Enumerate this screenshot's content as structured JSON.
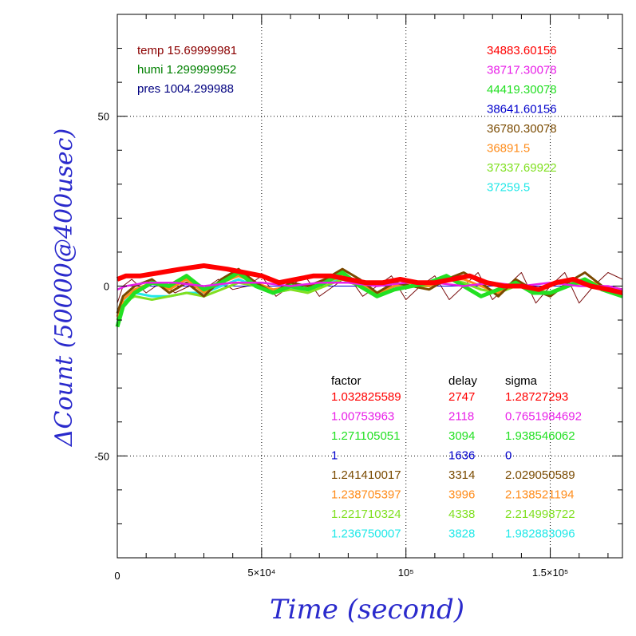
{
  "chart_data": {
    "type": "line",
    "title": "",
    "xlabel": "Time (second)",
    "ylabel": "ΔCount (50000@400usec)",
    "xlim": [
      0,
      175000
    ],
    "ylim": [
      -80,
      80
    ],
    "grid": "dotted at x=50000,100000,150000 and y=-50,0,50",
    "x_ticks": [
      {
        "value": 0,
        "label": "0"
      },
      {
        "value": 50000,
        "label": "5×10⁴"
      },
      {
        "value": 100000,
        "label": "10⁵"
      },
      {
        "value": 150000,
        "label": "1.5×10⁵"
      }
    ],
    "y_ticks": [
      {
        "value": -50,
        "label": "-50"
      },
      {
        "value": 0,
        "label": "0"
      },
      {
        "value": 50,
        "label": "50"
      }
    ],
    "env": [
      {
        "label": "temp",
        "value": "15.69999981",
        "color": "#8b0000"
      },
      {
        "label": "humi",
        "value": "1.299999952",
        "color": "#008000"
      },
      {
        "label": "pres",
        "value": "1004.299988",
        "color": "#000080"
      }
    ],
    "table_header": {
      "factor": "factor",
      "delay": "delay",
      "sigma": "sigma"
    },
    "series": [
      {
        "mean": "34883.60156",
        "factor": "1.032825589",
        "delay": "2747",
        "sigma": "1.28727293",
        "color": "#ff0000",
        "x": [
          0,
          3000,
          8000,
          15000,
          22000,
          30000,
          38000,
          44000,
          50000,
          56000,
          62000,
          68000,
          74000,
          80000,
          86000,
          92000,
          98000,
          104000,
          110000,
          116000,
          122000,
          128000,
          134000,
          140000,
          146000,
          152000,
          158000,
          164000,
          170000,
          175000
        ],
        "y": [
          2,
          3,
          3,
          4,
          5,
          6,
          5,
          4,
          3,
          1,
          2,
          3,
          3,
          2,
          1,
          1,
          2,
          1,
          1,
          2,
          3,
          1,
          0,
          0,
          -1,
          1,
          2,
          0,
          -1,
          -2
        ]
      },
      {
        "mean": "38717.30078",
        "factor": "1.00753963",
        "delay": "2118",
        "sigma": "0.7651984692",
        "color": "#e81ee8",
        "x": [
          0,
          3000,
          10000,
          20000,
          30000,
          40000,
          50000,
          60000,
          70000,
          80000,
          90000,
          100000,
          110000,
          120000,
          130000,
          140000,
          150000,
          160000,
          170000,
          175000
        ],
        "y": [
          -1,
          0,
          1,
          1,
          0,
          1,
          1,
          0,
          1,
          1,
          0,
          1,
          1,
          0,
          1,
          0,
          1,
          0,
          0,
          -1
        ]
      },
      {
        "mean": "44419.30078",
        "factor": "1.271105051",
        "delay": "3094",
        "sigma": "1.938546062",
        "color": "#22e022",
        "x": [
          0,
          2000,
          6000,
          12000,
          18000,
          24000,
          30000,
          36000,
          42000,
          48000,
          54000,
          60000,
          66000,
          72000,
          78000,
          84000,
          90000,
          96000,
          102000,
          108000,
          114000,
          120000,
          126000,
          132000,
          138000,
          144000,
          150000,
          156000,
          162000,
          168000,
          175000
        ],
        "y": [
          -12,
          -6,
          -2,
          1,
          0,
          3,
          -1,
          1,
          4,
          0,
          -2,
          0,
          -1,
          1,
          4,
          0,
          -3,
          -1,
          0,
          1,
          3,
          0,
          -3,
          -1,
          1,
          -2,
          -2,
          0,
          2,
          -1,
          -3
        ]
      },
      {
        "mean": "38641.60156",
        "factor": "1",
        "delay": "1636",
        "sigma": "0",
        "color": "#0000cc",
        "x": [
          0,
          5000,
          20000,
          40000,
          60000,
          80000,
          100000,
          120000,
          140000,
          160000,
          175000
        ],
        "y": [
          0,
          0,
          0,
          0,
          0,
          0,
          0,
          0,
          0,
          0,
          0
        ]
      },
      {
        "mean": "36780.30078",
        "factor": "1.241410017",
        "delay": "3314",
        "sigma": "2.029050589",
        "color": "#7a4a00",
        "x": [
          0,
          2000,
          6000,
          12000,
          18000,
          24000,
          30000,
          36000,
          42000,
          48000,
          54000,
          60000,
          66000,
          72000,
          78000,
          84000,
          90000,
          96000,
          102000,
          108000,
          114000,
          120000,
          126000,
          132000,
          138000,
          144000,
          150000,
          156000,
          162000,
          168000,
          175000
        ],
        "y": [
          -8,
          -3,
          0,
          2,
          -2,
          1,
          -3,
          2,
          5,
          1,
          -2,
          1,
          0,
          2,
          5,
          2,
          -2,
          1,
          0,
          -1,
          2,
          4,
          1,
          -3,
          2,
          -1,
          -3,
          1,
          4,
          0,
          -1
        ]
      },
      {
        "mean": "36891.5",
        "factor": "1.238705397",
        "delay": "3996",
        "sigma": "2.138521194",
        "color": "#ff8c1a",
        "x": [
          0,
          2000,
          6000,
          12000,
          18000,
          24000,
          30000,
          36000,
          42000,
          48000,
          54000,
          60000,
          66000,
          72000,
          78000,
          84000,
          90000,
          96000,
          102000,
          108000,
          114000,
          120000,
          126000,
          132000,
          138000,
          144000,
          150000,
          156000,
          162000,
          168000,
          175000
        ],
        "y": [
          -9,
          -4,
          -1,
          1,
          -1,
          2,
          -2,
          1,
          3,
          1,
          -1,
          0,
          -1,
          1,
          3,
          1,
          -2,
          0,
          1,
          0,
          2,
          2,
          0,
          -2,
          1,
          -1,
          -2,
          0,
          2,
          0,
          -2
        ]
      },
      {
        "mean": "37337.69922",
        "factor": "1.221710324",
        "delay": "4338",
        "sigma": "2.214998722",
        "color": "#80e020",
        "x": [
          0,
          2000,
          6000,
          12000,
          18000,
          24000,
          30000,
          36000,
          42000,
          48000,
          54000,
          60000,
          66000,
          72000,
          78000,
          84000,
          90000,
          96000,
          102000,
          108000,
          114000,
          120000,
          126000,
          132000,
          138000,
          144000,
          150000,
          156000,
          162000,
          168000,
          175000
        ],
        "y": [
          -10,
          -5,
          -3,
          -4,
          -3,
          -2,
          -3,
          -1,
          1,
          0,
          -2,
          -1,
          -2,
          0,
          2,
          0,
          -2,
          -1,
          0,
          0,
          2,
          1,
          -1,
          -2,
          0,
          -1,
          -2,
          0,
          1,
          -1,
          -2
        ]
      },
      {
        "mean": "37259.5",
        "factor": "1.236750007",
        "delay": "3828",
        "sigma": "1.982883096",
        "color": "#22e8e8",
        "x": [
          0,
          2000,
          6000,
          12000,
          18000,
          24000,
          30000,
          36000,
          42000,
          48000,
          54000,
          60000,
          66000,
          72000,
          78000,
          84000,
          90000,
          96000,
          102000,
          108000,
          114000,
          120000,
          126000,
          132000,
          138000,
          144000,
          150000,
          156000,
          162000,
          168000,
          175000
        ],
        "y": [
          -11,
          -5,
          -2,
          -3,
          -3,
          -2,
          -2,
          0,
          2,
          0,
          -2,
          -1,
          -1,
          1,
          2,
          0,
          -2,
          0,
          0,
          0,
          2,
          1,
          -1,
          -2,
          0,
          -1,
          -2,
          0,
          1,
          -1,
          -2
        ]
      },
      {
        "mean": "",
        "color": "#7a1010",
        "x": [
          0,
          2000,
          5000,
          10000,
          15000,
          20000,
          25000,
          30000,
          35000,
          40000,
          45000,
          50000,
          55000,
          60000,
          65000,
          70000,
          75000,
          80000,
          85000,
          90000,
          95000,
          100000,
          105000,
          110000,
          115000,
          120000,
          125000,
          130000,
          135000,
          140000,
          145000,
          150000,
          155000,
          160000,
          165000,
          170000,
          175000
        ],
        "y": [
          -5,
          0,
          2,
          -2,
          1,
          -2,
          0,
          -1,
          2,
          -1,
          0,
          3,
          -3,
          0,
          3,
          -3,
          0,
          3,
          -3,
          0,
          3,
          -4,
          0,
          3,
          -4,
          0,
          4,
          -4,
          0,
          4,
          -5,
          0,
          4,
          -5,
          0,
          4,
          2
        ]
      }
    ]
  }
}
